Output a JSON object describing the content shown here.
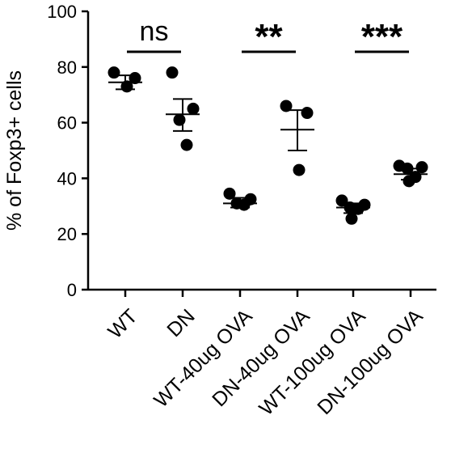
{
  "chart_data": {
    "type": "scatter",
    "ylabel": "% of Foxp3+ cells",
    "xlabel": "",
    "ylim": [
      0,
      100
    ],
    "yticks": [
      0,
      20,
      40,
      60,
      80,
      100
    ],
    "categories": [
      "WT",
      "DN",
      "WT-40ug OVA",
      "DN-40ug OVA",
      "WT-100ug OVA",
      "DN-100ug OVA"
    ],
    "groups": [
      {
        "name": "WT",
        "points": [
          78,
          76,
          73
        ],
        "mean": 74.5,
        "error": [
          72,
          77
        ]
      },
      {
        "name": "DN",
        "points": [
          78,
          65,
          61,
          52
        ],
        "mean": 63,
        "error": [
          57,
          68.5
        ]
      },
      {
        "name": "WT-40ug OVA",
        "points": [
          34.5,
          32.5,
          31,
          30.5
        ],
        "mean": 31,
        "error": [
          29.5,
          33
        ]
      },
      {
        "name": "DN-40ug OVA",
        "points": [
          66,
          63.5,
          43
        ],
        "mean": 57.5,
        "error": [
          50,
          64.5
        ]
      },
      {
        "name": "WT-100ug OVA",
        "points": [
          32,
          30.5,
          29.5,
          29,
          25.5
        ],
        "mean": 29.5,
        "error": [
          27.5,
          31
        ]
      },
      {
        "name": "DN-100ug OVA",
        "points": [
          44.5,
          44,
          43.5,
          40.5,
          39
        ],
        "mean": 41.5,
        "error": [
          39.5,
          43.5
        ]
      }
    ],
    "annotations": [
      {
        "text": "ns",
        "from": 0,
        "to": 1
      },
      {
        "text": "**",
        "from": 2,
        "to": 3
      },
      {
        "text": "***",
        "from": 4,
        "to": 5
      }
    ],
    "grid": false,
    "legend": "none"
  }
}
